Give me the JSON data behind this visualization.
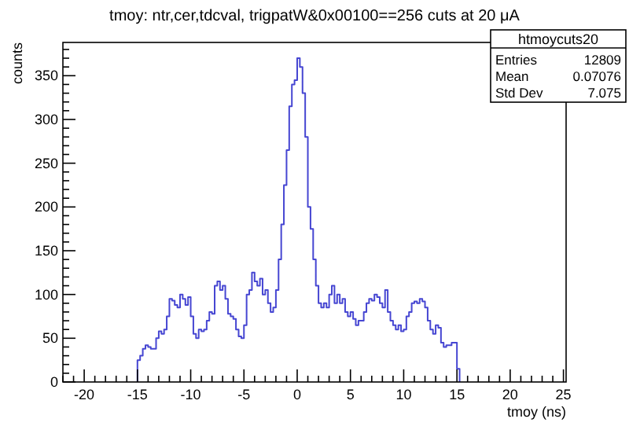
{
  "chart_data": {
    "type": "histogram",
    "title": "tmoy: ntr,cer,tdcval, trigpatW&0x00100==256  cuts at 20 μA",
    "xlabel": "tmoy (ns)",
    "ylabel": "counts",
    "bins": [
      -15,
      -14.75,
      -14.5,
      -14.25,
      -14,
      -13.75,
      -13.5,
      -13.25,
      -13,
      -12.75,
      -12.5,
      -12.25,
      -12,
      -11.75,
      -11.5,
      -11.25,
      -11,
      -10.75,
      -10.5,
      -10.25,
      -10,
      -9.75,
      -9.5,
      -9.25,
      -9,
      -8.75,
      -8.5,
      -8.25,
      -8,
      -7.75,
      -7.5,
      -7.25,
      -7,
      -6.75,
      -6.5,
      -6.25,
      -6,
      -5.75,
      -5.5,
      -5.25,
      -5,
      -4.75,
      -4.5,
      -4.25,
      -4,
      -3.75,
      -3.5,
      -3.25,
      -3,
      -2.75,
      -2.5,
      -2.25,
      -2,
      -1.75,
      -1.5,
      -1.25,
      -1,
      -0.75,
      -0.5,
      -0.25,
      0,
      0.25,
      0.5,
      0.75,
      1,
      1.25,
      1.5,
      1.75,
      2,
      2.25,
      2.5,
      2.75,
      3,
      3.25,
      3.5,
      3.75,
      4,
      4.25,
      4.5,
      4.75,
      5,
      5.25,
      5.5,
      5.75,
      6,
      6.25,
      6.5,
      6.75,
      7,
      7.25,
      7.5,
      7.75,
      8,
      8.25,
      8.5,
      8.75,
      9,
      9.25,
      9.5,
      9.75,
      10,
      10.25,
      10.5,
      10.75,
      11,
      11.25,
      11.5,
      11.75,
      12,
      12.25,
      12.5,
      12.75,
      13,
      13.25,
      13.5,
      13.75,
      14,
      14.25,
      14.5,
      14.75,
      15,
      15.25
    ],
    "values": [
      25,
      30,
      38,
      42,
      40,
      38,
      38,
      50,
      58,
      55,
      60,
      75,
      95,
      93,
      88,
      85,
      100,
      95,
      88,
      97,
      75,
      55,
      50,
      60,
      58,
      60,
      70,
      80,
      78,
      110,
      115,
      105,
      110,
      95,
      78,
      75,
      72,
      60,
      52,
      50,
      65,
      100,
      105,
      125,
      115,
      110,
      118,
      100,
      105,
      90,
      80,
      85,
      105,
      140,
      180,
      225,
      265,
      315,
      340,
      345,
      370,
      360,
      330,
      280,
      200,
      175,
      140,
      110,
      90,
      85,
      90,
      85,
      100,
      110,
      90,
      100,
      90,
      95,
      80,
      75,
      80,
      72,
      65,
      70,
      70,
      80,
      90,
      95,
      93,
      100,
      97,
      90,
      85,
      105,
      80,
      70,
      65,
      60,
      65,
      58,
      60,
      75,
      80,
      90,
      92,
      90,
      95,
      92,
      85,
      70,
      60,
      55,
      65,
      62,
      45,
      40,
      42,
      42,
      45,
      45,
      15
    ],
    "color": "#4646d2",
    "xlim": [
      -22,
      25.25
    ],
    "xticks": [
      {
        "value": -22,
        "label": null
      },
      {
        "value": -21,
        "label": null
      },
      -20,
      {
        "value": -19,
        "label": null
      },
      {
        "value": -18,
        "label": null
      },
      {
        "value": -17,
        "label": null
      },
      {
        "value": -16,
        "label": null
      },
      -15,
      {
        "value": -14,
        "label": null
      },
      {
        "value": -13,
        "label": null
      },
      {
        "value": -12,
        "label": null
      },
      {
        "value": -11,
        "label": null
      },
      -10,
      {
        "value": -9,
        "label": null
      },
      {
        "value": -8,
        "label": null
      },
      {
        "value": -7,
        "label": null
      },
      {
        "value": -6,
        "label": null
      },
      -5,
      {
        "value": -4,
        "label": null
      },
      {
        "value": -3,
        "label": null
      },
      {
        "value": -2,
        "label": null
      },
      {
        "value": -1,
        "label": null
      },
      0,
      {
        "value": 1,
        "label": null
      },
      {
        "value": 2,
        "label": null
      },
      {
        "value": 3,
        "label": null
      },
      {
        "value": 4,
        "label": null
      },
      5,
      {
        "value": 6,
        "label": null
      },
      {
        "value": 7,
        "label": null
      },
      {
        "value": 8,
        "label": null
      },
      {
        "value": 9,
        "label": null
      },
      10,
      {
        "value": 11,
        "label": null
      },
      {
        "value": 12,
        "label": null
      },
      {
        "value": 13,
        "label": null
      },
      {
        "value": 14,
        "label": null
      },
      15,
      {
        "value": 16,
        "label": null
      },
      {
        "value": 17,
        "label": null
      },
      {
        "value": 18,
        "label": null
      },
      {
        "value": 19,
        "label": null
      },
      20,
      {
        "value": 21,
        "label": null
      },
      {
        "value": 22,
        "label": null
      },
      {
        "value": 23,
        "label": null
      },
      {
        "value": 24,
        "label": null
      },
      25
    ],
    "ylim": [
      0,
      388
    ],
    "yticks": [
      0,
      {
        "value": 10,
        "label": null
      },
      {
        "value": 20,
        "label": null
      },
      {
        "value": 30,
        "label": null
      },
      {
        "value": 40,
        "label": null
      },
      50,
      {
        "value": 60,
        "label": null
      },
      {
        "value": 70,
        "label": null
      },
      {
        "value": 80,
        "label": null
      },
      {
        "value": 90,
        "label": null
      },
      100,
      {
        "value": 110,
        "label": null
      },
      {
        "value": 120,
        "label": null
      },
      {
        "value": 130,
        "label": null
      },
      {
        "value": 140,
        "label": null
      },
      150,
      {
        "value": 160,
        "label": null
      },
      {
        "value": 170,
        "label": null
      },
      {
        "value": 180,
        "label": null
      },
      {
        "value": 190,
        "label": null
      },
      200,
      {
        "value": 210,
        "label": null
      },
      {
        "value": 220,
        "label": null
      },
      {
        "value": 230,
        "label": null
      },
      {
        "value": 240,
        "label": null
      },
      250,
      {
        "value": 260,
        "label": null
      },
      {
        "value": 270,
        "label": null
      },
      {
        "value": 280,
        "label": null
      },
      {
        "value": 290,
        "label": null
      },
      300,
      {
        "value": 310,
        "label": null
      },
      {
        "value": 320,
        "label": null
      },
      {
        "value": 330,
        "label": null
      },
      {
        "value": 340,
        "label": null
      },
      350,
      {
        "value": 360,
        "label": null
      },
      {
        "value": 370,
        "label": null
      },
      {
        "value": 380,
        "label": null
      }
    ],
    "annotations": [
      "htmoycuts20",
      "Entries",
      "12809",
      "Mean",
      "0.07076",
      "Std Dev",
      "7.075"
    ]
  }
}
